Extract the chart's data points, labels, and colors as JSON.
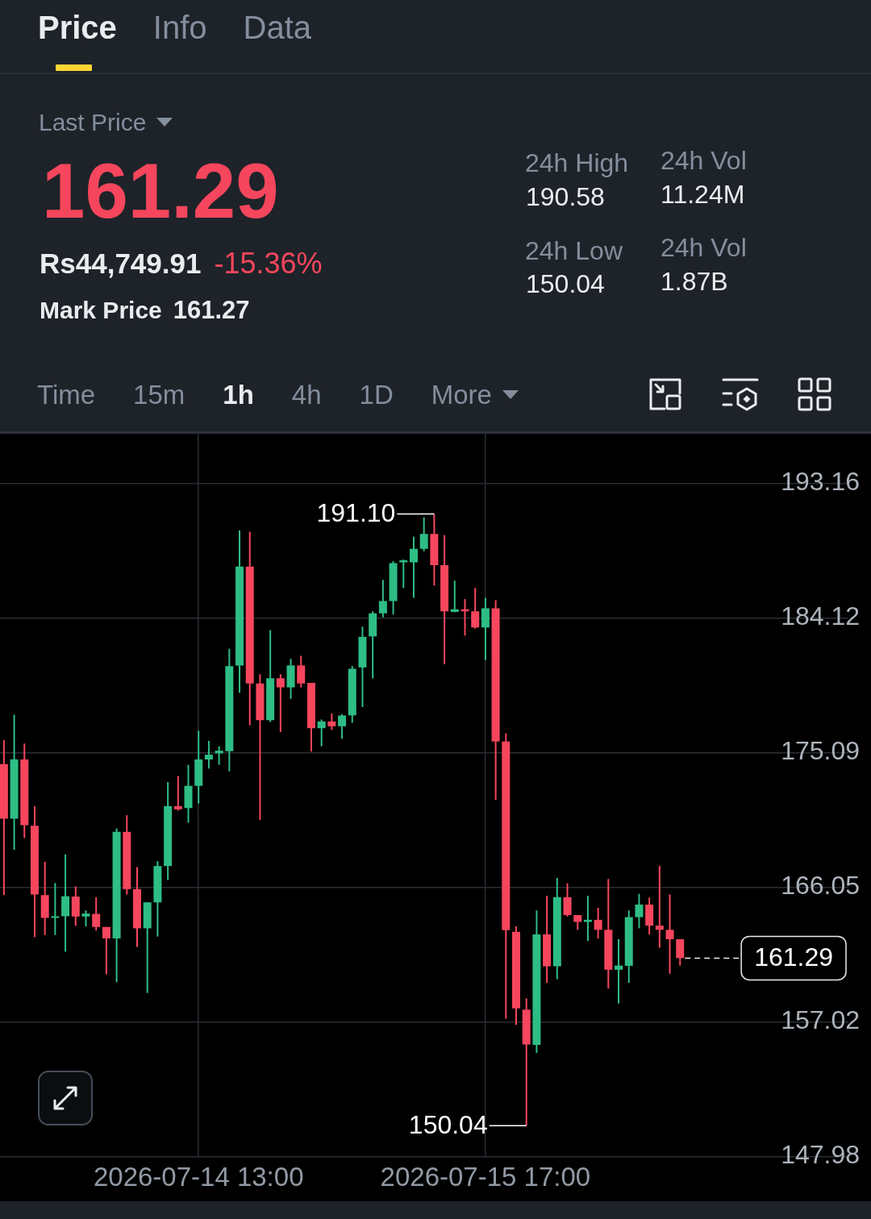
{
  "chart_data": {
    "type": "candlestick",
    "x": [
      "2026-07-13T18:00",
      "2026-07-13T19:00",
      "2026-07-13T20:00",
      "2026-07-13T21:00",
      "2026-07-13T22:00",
      "2026-07-13T23:00",
      "2026-07-14T00:00",
      "2026-07-14T01:00",
      "2026-07-14T02:00",
      "2026-07-14T03:00",
      "2026-07-14T04:00",
      "2026-07-14T05:00",
      "2026-07-14T06:00",
      "2026-07-14T07:00",
      "2026-07-14T08:00",
      "2026-07-14T09:00",
      "2026-07-14T10:00",
      "2026-07-14T11:00",
      "2026-07-14T12:00",
      "2026-07-14T13:00",
      "2026-07-14T14:00",
      "2026-07-14T15:00",
      "2026-07-14T16:00",
      "2026-07-14T17:00",
      "2026-07-14T18:00",
      "2026-07-14T19:00",
      "2026-07-14T20:00",
      "2026-07-14T21:00",
      "2026-07-14T22:00",
      "2026-07-14T23:00",
      "2026-07-15T00:00",
      "2026-07-15T01:00",
      "2026-07-15T02:00",
      "2026-07-15T03:00",
      "2026-07-15T04:00",
      "2026-07-15T05:00",
      "2026-07-15T06:00",
      "2026-07-15T07:00",
      "2026-07-15T08:00",
      "2026-07-15T09:00",
      "2026-07-15T10:00",
      "2026-07-15T11:00",
      "2026-07-15T12:00",
      "2026-07-15T13:00",
      "2026-07-15T14:00",
      "2026-07-15T15:00",
      "2026-07-15T16:00",
      "2026-07-15T17:00",
      "2026-07-15T18:00",
      "2026-07-15T19:00",
      "2026-07-15T20:00",
      "2026-07-15T21:00",
      "2026-07-15T22:00",
      "2026-07-15T23:00",
      "2026-07-16T00:00",
      "2026-07-16T01:00",
      "2026-07-16T02:00",
      "2026-07-16T03:00",
      "2026-07-16T04:00",
      "2026-07-16T05:00",
      "2026-07-16T06:00",
      "2026-07-16T07:00",
      "2026-07-16T08:00",
      "2026-07-16T09:00",
      "2026-07-16T10:00",
      "2026-07-16T11:00",
      "2026-07-16T12:00"
    ],
    "ohlc": [
      [
        174.31,
        175.92,
        165.52,
        170.65
      ],
      [
        170.65,
        177.62,
        168.56,
        174.63
      ],
      [
        174.62,
        175.69,
        169.35,
        170.21
      ],
      [
        170.17,
        171.49,
        162.7,
        165.56
      ],
      [
        165.52,
        167.76,
        162.84,
        163.99
      ],
      [
        163.99,
        166.33,
        162.84,
        164.1
      ],
      [
        164.1,
        168.24,
        161.72,
        165.44
      ],
      [
        165.42,
        166.1,
        163.46,
        164.08
      ],
      [
        164.08,
        164.49,
        163.42,
        164.28
      ],
      [
        164.26,
        165.38,
        163.15,
        163.38
      ],
      [
        163.38,
        163.38,
        160.2,
        162.61
      ],
      [
        162.61,
        169.99,
        159.67,
        169.76
      ],
      [
        169.76,
        170.88,
        165.56,
        165.92
      ],
      [
        165.92,
        167.4,
        162.04,
        163.29
      ],
      [
        163.29,
        165.03,
        158.95,
        165.03
      ],
      [
        165.03,
        167.8,
        162.74,
        167.47
      ],
      [
        167.47,
        173.1,
        166.54,
        171.49
      ],
      [
        171.49,
        173.51,
        171.19,
        171.28
      ],
      [
        171.36,
        174.26,
        170.38,
        172.85
      ],
      [
        172.85,
        176.55,
        171.67,
        174.62
      ],
      [
        174.62,
        175.87,
        174.01,
        174.94
      ],
      [
        175.03,
        175.51,
        174.26,
        175.21
      ],
      [
        175.17,
        182.05,
        173.83,
        180.89
      ],
      [
        180.93,
        190.0,
        179.1,
        187.57
      ],
      [
        187.57,
        189.91,
        176.91,
        179.72
      ],
      [
        179.72,
        180.34,
        170.56,
        177.26
      ],
      [
        177.26,
        183.3,
        177.14,
        180.07
      ],
      [
        180.07,
        180.34,
        176.46,
        179.46
      ],
      [
        179.46,
        181.37,
        178.69,
        180.93
      ],
      [
        180.93,
        181.58,
        179.46,
        179.72
      ],
      [
        179.76,
        179.76,
        175.15,
        176.72
      ],
      [
        176.72,
        177.3,
        175.51,
        177.17
      ],
      [
        177.17,
        177.71,
        176.6,
        176.85
      ],
      [
        176.85,
        177.66,
        176.01,
        177.57
      ],
      [
        177.58,
        180.89,
        177.08,
        180.71
      ],
      [
        180.8,
        183.53,
        178.14,
        182.85
      ],
      [
        182.88,
        184.57,
        180.06,
        184.43
      ],
      [
        184.43,
        186.68,
        184.16,
        185.25
      ],
      [
        185.25,
        187.93,
        184.35,
        187.8
      ],
      [
        187.85,
        188.04,
        186.13,
        187.99
      ],
      [
        187.85,
        189.57,
        185.47,
        188.75
      ],
      [
        188.75,
        190.86,
        188.59,
        189.76
      ],
      [
        189.76,
        191.1,
        186.29,
        187.66
      ],
      [
        187.66,
        189.68,
        181.02,
        184.57
      ],
      [
        184.52,
        186.62,
        184.49,
        184.7
      ],
      [
        184.7,
        185.39,
        182.93,
        184.57
      ],
      [
        184.57,
        186.13,
        183.4,
        183.48
      ],
      [
        183.48,
        185.47,
        181.29,
        184.76
      ],
      [
        184.76,
        185.31,
        171.91,
        175.82
      ],
      [
        175.82,
        176.36,
        157.23,
        163.16
      ],
      [
        163.05,
        163.43,
        156.81,
        157.91
      ],
      [
        157.83,
        158.59,
        150.04,
        155.5
      ],
      [
        155.47,
        164.49,
        154.93,
        162.88
      ],
      [
        162.88,
        165.47,
        159.63,
        160.74
      ],
      [
        160.74,
        166.67,
        159.88,
        165.38
      ],
      [
        165.38,
        166.31,
        164.08,
        164.18
      ],
      [
        164.18,
        164.18,
        163.19,
        163.72
      ],
      [
        163.72,
        165.47,
        162.44,
        163.86
      ],
      [
        163.86,
        164.67,
        162.61,
        163.19
      ],
      [
        163.19,
        166.6,
        159.25,
        160.51
      ],
      [
        160.51,
        162.56,
        158.24,
        160.79
      ],
      [
        160.77,
        164.49,
        159.63,
        164.04
      ],
      [
        164.04,
        165.61,
        163.29,
        164.88
      ],
      [
        164.88,
        165.35,
        162.88,
        163.47
      ],
      [
        163.47,
        167.49,
        161.99,
        163.19
      ],
      [
        163.19,
        165.56,
        160.24,
        162.56
      ],
      [
        162.56,
        162.56,
        160.79,
        161.29
      ]
    ],
    "colors": [
      "#f6465d",
      "#2ebd85",
      "#f6465d",
      "#f6465d",
      "#f6465d",
      "#2ebd85",
      "#2ebd85",
      "#f6465d",
      "#2ebd85",
      "#f6465d",
      "#f6465d",
      "#2ebd85",
      "#f6465d",
      "#f6465d",
      "#2ebd85",
      "#2ebd85",
      "#2ebd85",
      "#f6465d",
      "#2ebd85",
      "#2ebd85",
      "#2ebd85",
      "#2ebd85",
      "#2ebd85",
      "#2ebd85",
      "#f6465d",
      "#f6465d",
      "#2ebd85",
      "#f6465d",
      "#2ebd85",
      "#f6465d",
      "#f6465d",
      "#2ebd85",
      "#f6465d",
      "#2ebd85",
      "#2ebd85",
      "#2ebd85",
      "#2ebd85",
      "#2ebd85",
      "#2ebd85",
      "#2ebd85",
      "#2ebd85",
      "#2ebd85",
      "#f6465d",
      "#f6465d",
      "#2ebd85",
      "#f6465d",
      "#f6465d",
      "#2ebd85",
      "#f6465d",
      "#f6465d",
      "#f6465d",
      "#f6465d",
      "#2ebd85",
      "#f6465d",
      "#2ebd85",
      "#f6465d",
      "#f6465d",
      "#2ebd85",
      "#f6465d",
      "#f6465d",
      "#2ebd85",
      "#2ebd85",
      "#2ebd85",
      "#f6465d",
      "#f6465d",
      "#f6465d",
      "#f6465d"
    ],
    "xlim": [
      "2026-07-13T17:37",
      "2026-07-17T04:26"
    ],
    "xticks": [
      {
        "value": "2026-07-14T13:00",
        "label": "2026-07-14 13:00"
      },
      {
        "value": "2026-07-15T17:00",
        "label": "2026-07-15 17:00"
      }
    ],
    "ylim": [
      147.98,
      196.48
    ],
    "yticks": [
      147.98,
      157.02,
      166.05,
      175.09,
      184.12,
      193.16
    ],
    "grid": true,
    "ref_lines": [
      {
        "axis": "y",
        "value": 161.29,
        "label": "161.29",
        "line_style": "dashed",
        "color": "#eaecef"
      }
    ],
    "annotations": [
      "Price",
      "Info",
      "Data",
      "Last Price",
      "161.29",
      "Rs44,749.91",
      "-15.36%",
      "Mark Price",
      "161.27",
      "24h High",
      "190.58",
      "24h Vol",
      "11.24M",
      "24h Low",
      "150.04",
      "24h Vol",
      "1.87B",
      "Time",
      "15m",
      "1h",
      "4h",
      "1D",
      "More",
      {
        "text": "191.10",
        "x": "2026-07-15T12:00",
        "y": 191.1
      },
      {
        "text": "150.04",
        "x": "2026-07-15T21:00",
        "y": 150.04
      }
    ]
  }
}
